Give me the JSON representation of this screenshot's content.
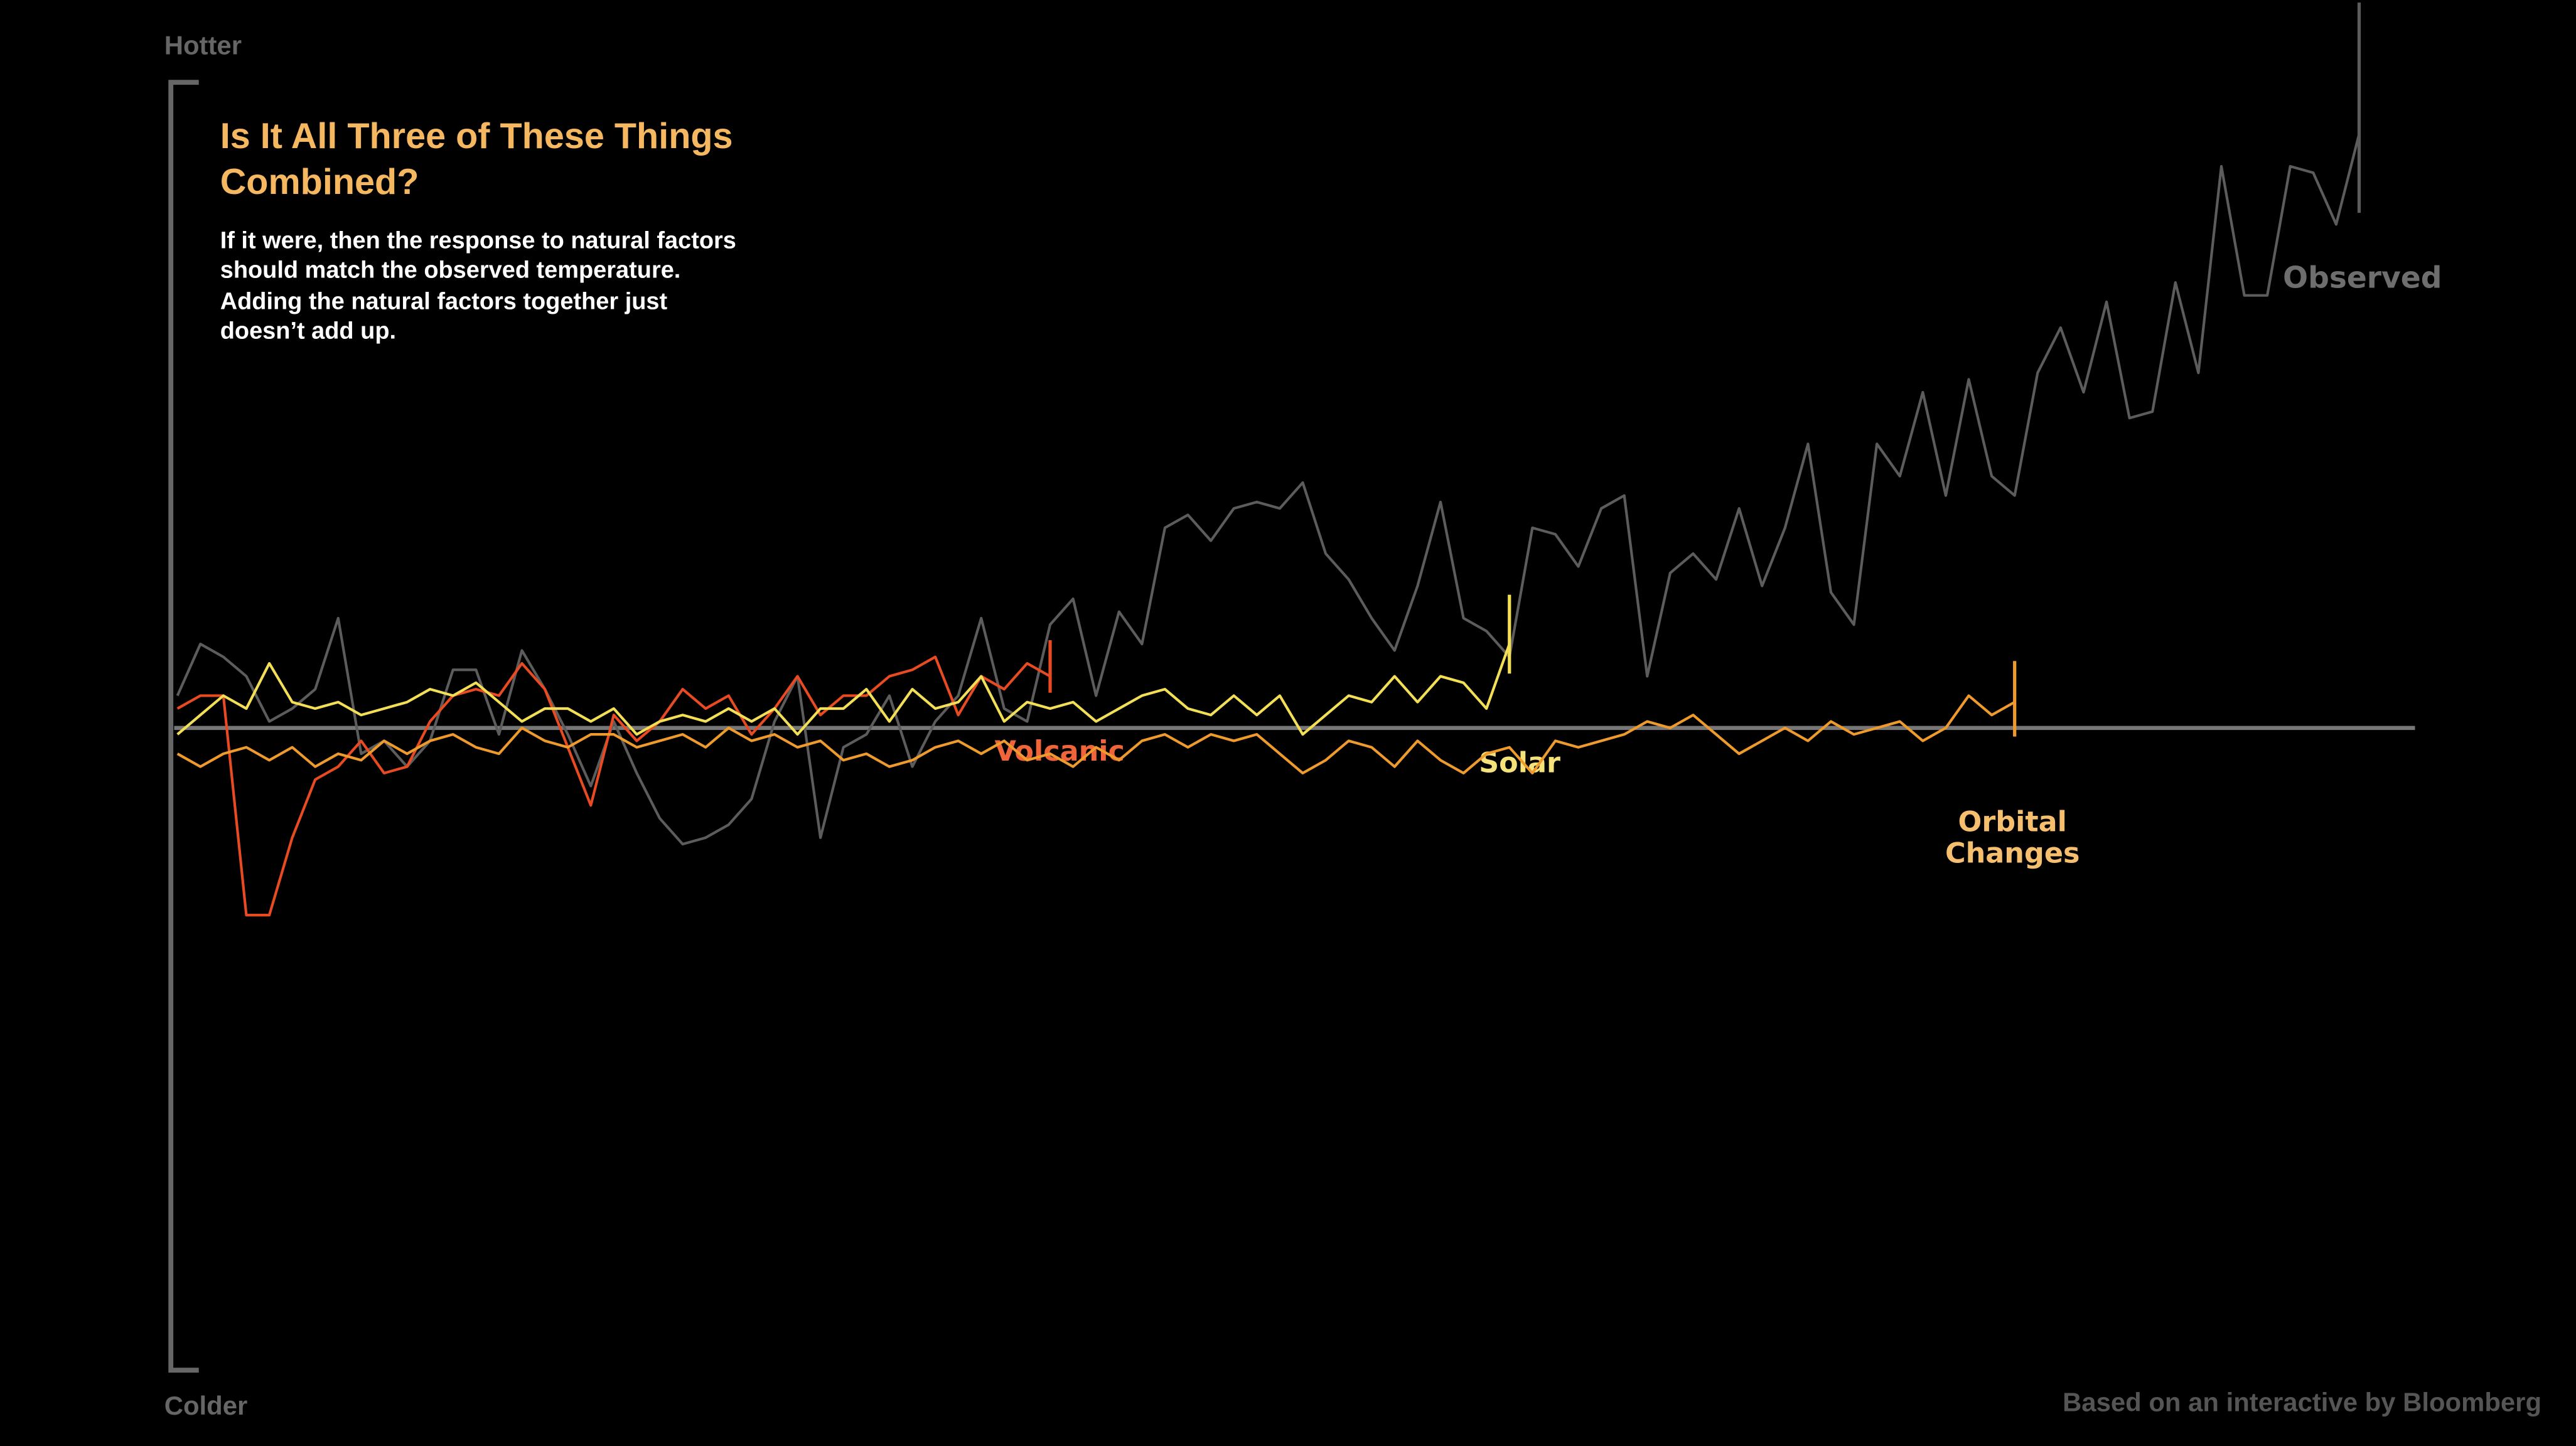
{
  "chart_data": {
    "type": "line",
    "title": [
      "Is It All Three of These Things",
      "Combined?"
    ],
    "subtitle": [
      "If it were, then the response to natural factors",
      "should match the observed temperature.",
      "Adding the natural factors together just",
      "doesn’t add up."
    ],
    "y_top_label": "Hotter",
    "y_bottom_label": "Colder",
    "source": "Based on an interactive by Bloomberg",
    "xlim": [
      0,
      95
    ],
    "ylim": [
      -100,
      100
    ],
    "x": [
      0,
      1,
      2,
      3,
      4,
      5,
      6,
      7,
      8,
      9,
      10,
      11,
      12,
      13,
      14,
      15,
      16,
      17,
      18,
      19,
      20,
      21,
      22,
      23,
      24,
      25,
      26,
      27,
      28,
      29,
      30,
      31,
      32,
      33,
      34,
      35,
      36,
      37,
      38,
      39,
      40,
      41,
      42,
      43,
      44,
      45,
      46,
      47,
      48,
      49,
      50,
      51,
      52,
      53,
      54,
      55,
      56,
      57,
      58,
      59,
      60,
      61,
      62,
      63,
      64,
      65,
      66,
      67,
      68,
      69,
      70,
      71,
      72,
      73,
      74,
      75,
      76,
      77,
      78,
      79,
      80,
      81,
      82,
      83,
      84,
      85,
      86,
      87,
      88,
      89,
      90,
      91,
      92,
      93,
      94,
      95
    ],
    "series": [
      {
        "name": "Observed",
        "color": "#5c5c5c",
        "label_color": "#6e6e6e",
        "values": [
          5,
          13,
          11,
          8,
          1,
          3,
          6,
          17,
          -4,
          -2,
          -6,
          -2,
          9,
          9,
          -1,
          12,
          6,
          -1,
          -9,
          1,
          -7,
          -14,
          -18,
          -17,
          -15,
          -11,
          1,
          8,
          -17,
          -3,
          -1,
          5,
          -6,
          1,
          5,
          17,
          3,
          1,
          16,
          20,
          5,
          18,
          13,
          31,
          33,
          29,
          34,
          35,
          34,
          38,
          27,
          23,
          17,
          12,
          22,
          35,
          17,
          15,
          11,
          31,
          30,
          25,
          34,
          36,
          8,
          24,
          27,
          23,
          34,
          22,
          31,
          44,
          21,
          16,
          44,
          39,
          52,
          36,
          54,
          39,
          36,
          55,
          62,
          52,
          66,
          48,
          49,
          69,
          55,
          87,
          67,
          67,
          87,
          86,
          78,
          92
        ]
      },
      {
        "name": "Volcanic",
        "color": "#e84a22",
        "label_color": "#f0643a",
        "values": [
          3,
          5,
          5,
          -29,
          -29,
          -17,
          -8,
          -6,
          -2,
          -7,
          -6,
          1,
          5,
          6,
          5,
          10,
          6,
          -3,
          -12,
          2,
          -2,
          1,
          6,
          3,
          5,
          -1,
          3,
          8,
          2,
          5,
          5,
          8,
          9,
          11,
          2,
          8,
          6,
          10,
          8,
          null,
          null,
          null,
          null,
          null,
          null,
          null,
          null,
          null,
          null,
          null,
          null,
          null,
          null,
          null,
          null,
          null,
          null,
          null,
          null,
          null,
          null,
          null,
          null,
          null,
          null,
          null,
          null,
          null,
          null,
          null,
          null,
          null,
          null,
          null,
          null,
          null,
          null,
          null,
          null,
          null,
          null,
          null,
          null,
          null,
          null,
          null,
          null,
          null,
          null,
          null,
          null,
          null,
          null,
          null,
          null,
          null
        ]
      },
      {
        "name": "Solar",
        "color": "#f3df55",
        "label_color": "#f5e27a",
        "values": [
          -1,
          2,
          5,
          3,
          10,
          4,
          3,
          4,
          2,
          3,
          4,
          6,
          5,
          7,
          4,
          1,
          3,
          3,
          1,
          3,
          -1,
          1,
          2,
          1,
          3,
          1,
          3,
          -1,
          3,
          3,
          6,
          1,
          6,
          3,
          4,
          8,
          1,
          4,
          3,
          4,
          1,
          3,
          5,
          6,
          3,
          2,
          5,
          2,
          5,
          -1,
          2,
          5,
          4,
          8,
          4,
          8,
          7,
          3,
          13,
          null,
          null,
          null,
          null,
          null,
          null,
          null,
          null,
          null,
          null,
          null,
          null,
          null,
          null,
          null,
          null,
          null,
          null,
          null,
          null,
          null,
          null,
          null,
          null,
          null,
          null,
          null,
          null,
          null,
          null,
          null,
          null,
          null,
          null,
          null,
          null,
          null
        ]
      },
      {
        "name": "Orbital Changes",
        "color": "#ee9a2c",
        "label_color": "#f5bf6e",
        "values": [
          -4,
          -6,
          -4,
          -3,
          -5,
          -3,
          -6,
          -4,
          -5,
          -2,
          -4,
          -2,
          -1,
          -3,
          -4,
          0,
          -2,
          -3,
          -1,
          -1,
          -3,
          -2,
          -1,
          -3,
          0,
          -2,
          -1,
          -3,
          -2,
          -5,
          -4,
          -6,
          -5,
          -3,
          -2,
          -4,
          -2,
          -5,
          -4,
          -6,
          -3,
          -5,
          -2,
          -1,
          -3,
          -1,
          -2,
          -1,
          -4,
          -7,
          -5,
          -2,
          -3,
          -6,
          -2,
          -5,
          -7,
          -4,
          -3,
          -7,
          -2,
          -3,
          -2,
          -1,
          1,
          0,
          2,
          -1,
          -4,
          -2,
          0,
          -2,
          1,
          -1,
          0,
          1,
          -2,
          0,
          5,
          2,
          4,
          null,
          null,
          null,
          null,
          null,
          null,
          null,
          null,
          null,
          null,
          null,
          null,
          null,
          null,
          null
        ]
      }
    ]
  }
}
